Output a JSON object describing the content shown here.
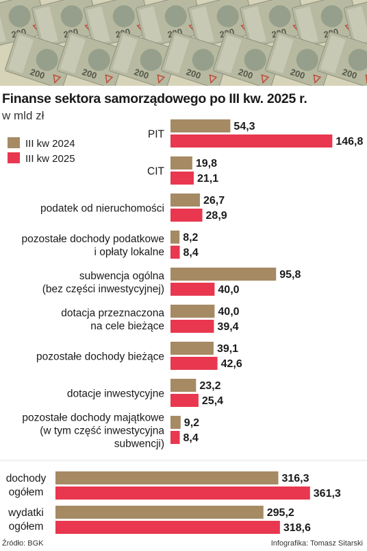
{
  "title": "Finanse sektora samorządowego po III kw. 2025 r.",
  "subtitle": "w mld zł",
  "source": "Źródło: BGK",
  "credit": "Infografika: Tomasz Sitarski",
  "colors": {
    "s2024": "#a58a64",
    "s2025": "#e8374f",
    "banknote": "#b7b9a0",
    "banknote_accent": "#7a8a7a"
  },
  "banner": {
    "note_label": "200"
  },
  "chart_data": {
    "type": "bar",
    "orientation": "horizontal",
    "legend_position": "top-left",
    "series": [
      {
        "name": "III kw 2024",
        "color": "#a58a64",
        "values": [
          54.3,
          19.8,
          26.7,
          8.2,
          95.8,
          40.0,
          39.1,
          23.2,
          9.2
        ]
      },
      {
        "name": "III kw 2025",
        "color": "#e8374f",
        "values": [
          146.8,
          21.1,
          28.9,
          8.4,
          40.0,
          39.4,
          42.6,
          25.4,
          8.4
        ]
      }
    ],
    "categories": [
      [
        "PIT"
      ],
      [
        "CIT"
      ],
      [
        "podatek od nieruchomości"
      ],
      [
        "pozostałe dochody podatkowe",
        "i opłaty lokalne"
      ],
      [
        "subwencja ogólna",
        "(bez części inwestycyjnej)"
      ],
      [
        "dotacja przeznaczona",
        "na cele bieżące"
      ],
      [
        "pozostałe dochody bieżące"
      ],
      [
        "dotacje inwestycyjne"
      ],
      [
        "pozostałe dochody majątkowe",
        "(w tym część inwestycyjna",
        "subwencji)"
      ]
    ],
    "value_labels": [
      [
        "54,3",
        "146,8"
      ],
      [
        "19,8",
        "21,1"
      ],
      [
        "26,7",
        "28,9"
      ],
      [
        "8,2",
        "8,4"
      ],
      [
        "95,8",
        "40,0"
      ],
      [
        "40,0",
        "39,4"
      ],
      [
        "39,1",
        "42,6"
      ],
      [
        "23,2",
        "25,4"
      ],
      [
        "9,2",
        "8,4"
      ]
    ],
    "totals": {
      "categories": [
        [
          "dochody",
          "ogółem"
        ],
        [
          "wydatki",
          "ogółem"
        ]
      ],
      "values_2024": [
        316.3,
        295.2
      ],
      "values_2025": [
        361.3,
        318.6
      ],
      "value_labels": [
        [
          "316,3",
          "361,3"
        ],
        [
          "295,2",
          "318,6"
        ]
      ]
    }
  }
}
